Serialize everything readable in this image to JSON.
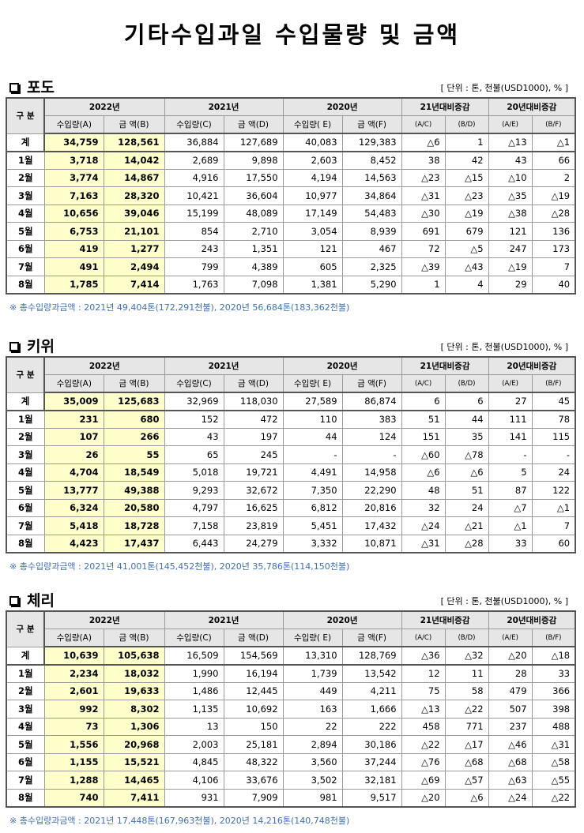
{
  "title": "기타수입과일 수입물량 및 금액",
  "unit_label": "[ 단위 : 톤, 천불(USD1000), % ]",
  "headers": {
    "gubun": "구 분",
    "y2022": "2022년",
    "y2021": "2021년",
    "y2020": "2020년",
    "vs21": "21년대비증감",
    "vs20": "20년대비증감",
    "qtyA": "수입량(A)",
    "amtB": "금  액(B)",
    "qtyC": "수입량(C)",
    "amtD": "금   액(D)",
    "qtyE": "수입량( E)",
    "amtF": "금   액(F)",
    "ac": "(A/C)",
    "bd": "(B/D)",
    "ae": "(A/E)",
    "bf": "(B/F)"
  },
  "sections": [
    {
      "name": "포도",
      "rows": [
        [
          "계",
          "34,759",
          "128,561",
          "36,884",
          "127,689",
          "40,083",
          "129,383",
          "△6",
          "1",
          "△13",
          "△1"
        ],
        [
          "1월",
          "3,718",
          "14,042",
          "2,689",
          "9,898",
          "2,603",
          "8,452",
          "38",
          "42",
          "43",
          "66"
        ],
        [
          "2월",
          "3,774",
          "14,867",
          "4,916",
          "17,550",
          "4,194",
          "14,563",
          "△23",
          "△15",
          "△10",
          "2"
        ],
        [
          "3월",
          "7,163",
          "28,320",
          "10,421",
          "36,604",
          "10,977",
          "34,864",
          "△31",
          "△23",
          "△35",
          "△19"
        ],
        [
          "4월",
          "10,656",
          "39,046",
          "15,199",
          "48,089",
          "17,149",
          "54,483",
          "△30",
          "△19",
          "△38",
          "△28"
        ],
        [
          "5월",
          "6,753",
          "21,101",
          "854",
          "2,710",
          "3,054",
          "8,939",
          "691",
          "679",
          "121",
          "136"
        ],
        [
          "6월",
          "419",
          "1,277",
          "243",
          "1,351",
          "121",
          "467",
          "72",
          "△5",
          "247",
          "173"
        ],
        [
          "7월",
          "491",
          "2,494",
          "799",
          "4,389",
          "605",
          "2,325",
          "△39",
          "△43",
          "△19",
          "7"
        ],
        [
          "8월",
          "1,785",
          "7,414",
          "1,763",
          "7,098",
          "1,381",
          "5,290",
          "1",
          "4",
          "29",
          "40"
        ]
      ],
      "note": "※ 총수입량과금액 : 2021년 49,404톤(172,291천불),  2020년 56,684톤(183,362천불)"
    },
    {
      "name": "키위",
      "rows": [
        [
          "계",
          "35,009",
          "125,683",
          "32,969",
          "118,030",
          "27,589",
          "86,874",
          "6",
          "6",
          "27",
          "45"
        ],
        [
          "1월",
          "231",
          "680",
          "152",
          "472",
          "110",
          "383",
          "51",
          "44",
          "111",
          "78"
        ],
        [
          "2월",
          "107",
          "266",
          "43",
          "197",
          "44",
          "124",
          "151",
          "35",
          "141",
          "115"
        ],
        [
          "3월",
          "26",
          "55",
          "65",
          "245",
          "-",
          "-",
          "△60",
          "△78",
          "-",
          "-"
        ],
        [
          "4월",
          "4,704",
          "18,549",
          "5,018",
          "19,721",
          "4,491",
          "14,958",
          "△6",
          "△6",
          "5",
          "24"
        ],
        [
          "5월",
          "13,777",
          "49,388",
          "9,293",
          "32,672",
          "7,350",
          "22,290",
          "48",
          "51",
          "87",
          "122"
        ],
        [
          "6월",
          "6,324",
          "20,580",
          "4,797",
          "16,625",
          "6,812",
          "20,816",
          "32",
          "24",
          "△7",
          "△1"
        ],
        [
          "7월",
          "5,418",
          "18,728",
          "7,158",
          "23,819",
          "5,451",
          "17,432",
          "△24",
          "△21",
          "△1",
          "7"
        ],
        [
          "8월",
          "4,423",
          "17,437",
          "6,443",
          "24,279",
          "3,332",
          "10,871",
          "△31",
          "△28",
          "33",
          "60"
        ]
      ],
      "note": "※ 총수입량과금액 : 2021년 41,001톤(145,452천불), 2020년 35,786톤(114,150천불)"
    },
    {
      "name": "체리",
      "rows": [
        [
          "계",
          "10,639",
          "105,638",
          "16,509",
          "154,569",
          "13,310",
          "128,769",
          "△36",
          "△32",
          "△20",
          "△18"
        ],
        [
          "1월",
          "2,234",
          "18,032",
          "1,990",
          "16,194",
          "1,739",
          "13,542",
          "12",
          "11",
          "28",
          "33"
        ],
        [
          "2월",
          "2,601",
          "19,633",
          "1,486",
          "12,445",
          "449",
          "4,211",
          "75",
          "58",
          "479",
          "366"
        ],
        [
          "3월",
          "992",
          "8,302",
          "1,135",
          "10,692",
          "163",
          "1,666",
          "△13",
          "△22",
          "507",
          "398"
        ],
        [
          "4월",
          "73",
          "1,306",
          "13",
          "150",
          "22",
          "222",
          "458",
          "771",
          "237",
          "488"
        ],
        [
          "5월",
          "1,556",
          "20,968",
          "2,003",
          "25,181",
          "2,894",
          "30,186",
          "△22",
          "△17",
          "△46",
          "△31"
        ],
        [
          "6월",
          "1,155",
          "15,521",
          "4,845",
          "48,322",
          "3,560",
          "37,244",
          "△76",
          "△68",
          "△68",
          "△58"
        ],
        [
          "7월",
          "1,288",
          "14,465",
          "4,106",
          "33,676",
          "3,502",
          "32,181",
          "△69",
          "△57",
          "△63",
          "△55"
        ],
        [
          "8월",
          "740",
          "7,411",
          "931",
          "7,909",
          "981",
          "9,517",
          "△20",
          "△6",
          "△24",
          "△22"
        ]
      ],
      "note": "※ 총수입량과금액 : 2021년 17,448톤(167,963천불), 2020년 14,216톤(140,748천불)"
    }
  ]
}
